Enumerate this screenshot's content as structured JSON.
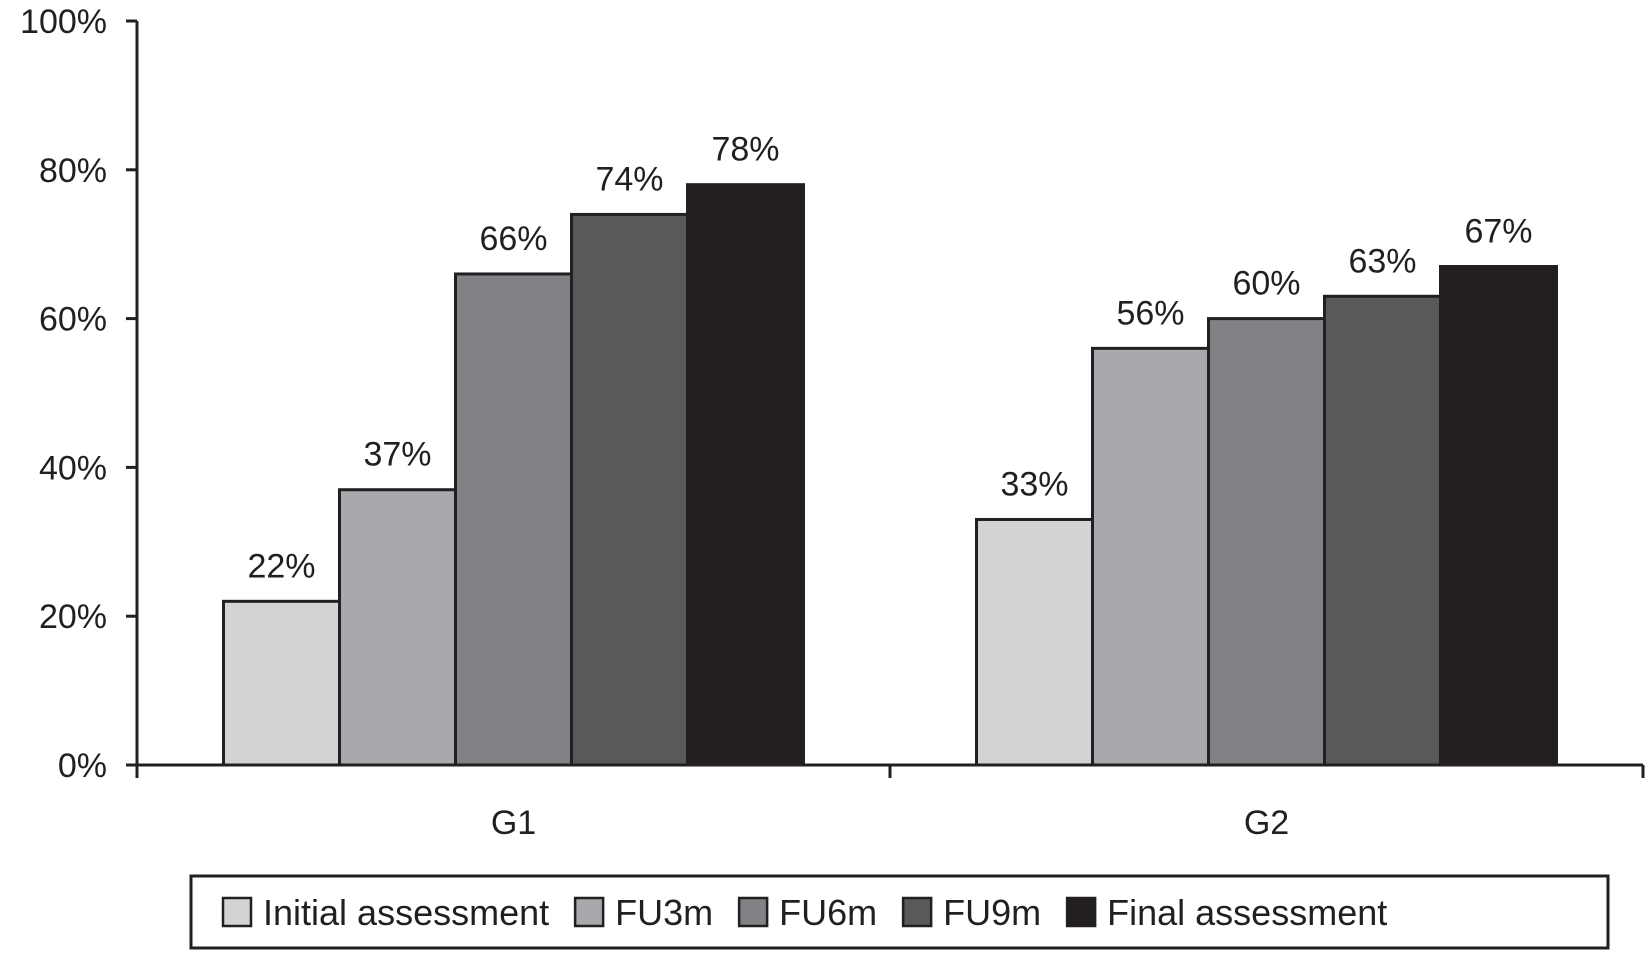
{
  "chart_data": {
    "type": "bar",
    "categories": [
      "G1",
      "G2"
    ],
    "series": [
      {
        "name": "Initial assessment",
        "values": [
          22,
          33
        ],
        "labels": [
          "22%",
          "33%"
        ],
        "color": "#d1d3d4"
      },
      {
        "name": "FU3m",
        "values": [
          37,
          56
        ],
        "labels": [
          "37%",
          "56%"
        ],
        "color": "#a7a9ac"
      },
      {
        "name": "FU6m",
        "values": [
          66,
          60
        ],
        "labels": [
          "66%",
          "60%"
        ],
        "color": "#808285"
      },
      {
        "name": "FU9m",
        "values": [
          74,
          63
        ],
        "labels": [
          "74%",
          "63%"
        ],
        "color": "#58595b"
      },
      {
        "name": "Final assessment",
        "values": [
          78,
          67
        ],
        "labels": [
          "78%",
          "67%"
        ],
        "color": "#231f20"
      }
    ],
    "ylim": [
      0,
      100
    ],
    "yticks": [
      0,
      20,
      40,
      60,
      80,
      100
    ],
    "ytick_labels": [
      "0%",
      "20%",
      "40%",
      "60%",
      "80%",
      "100%"
    ],
    "title": "",
    "xlabel": "",
    "ylabel": "",
    "grid": false,
    "legend_position": "bottom"
  }
}
